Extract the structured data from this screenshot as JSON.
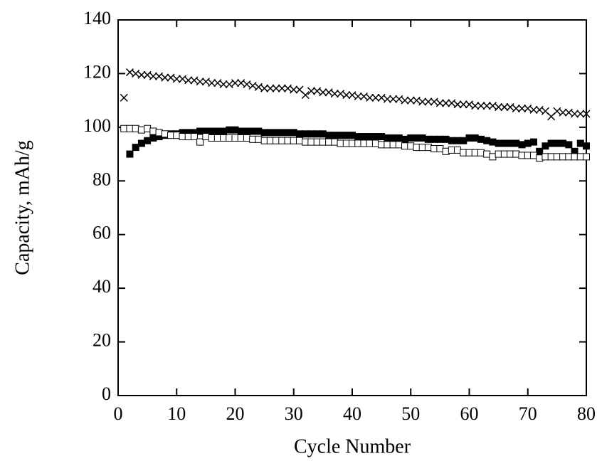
{
  "chart_data": {
    "type": "scatter",
    "xlabel": "Cycle Number",
    "ylabel": "Capacity, mAh/g",
    "xlim": [
      0,
      80
    ],
    "xticks": [
      0,
      10,
      20,
      30,
      40,
      50,
      60,
      70,
      80
    ],
    "ylim": [
      0,
      140
    ],
    "yticks": [
      0,
      20,
      40,
      60,
      80,
      100,
      120,
      140
    ],
    "grid": false,
    "x": [
      1,
      2,
      3,
      4,
      5,
      6,
      7,
      8,
      9,
      10,
      11,
      12,
      13,
      14,
      15,
      16,
      17,
      18,
      19,
      20,
      21,
      22,
      23,
      24,
      25,
      26,
      27,
      28,
      29,
      30,
      31,
      32,
      33,
      34,
      35,
      36,
      37,
      38,
      39,
      40,
      41,
      42,
      43,
      44,
      45,
      46,
      47,
      48,
      49,
      50,
      51,
      52,
      53,
      54,
      55,
      56,
      57,
      58,
      59,
      60,
      61,
      62,
      63,
      64,
      65,
      66,
      67,
      68,
      69,
      70,
      71,
      72,
      73,
      74,
      75,
      76,
      77,
      78,
      79,
      80
    ],
    "series": [
      {
        "marker": "x",
        "color": "#000000",
        "values": [
          111,
          120.5,
          120,
          119.5,
          119.5,
          119,
          119,
          118.5,
          118.5,
          118,
          118,
          117.5,
          117.5,
          117,
          117,
          116.5,
          116.5,
          116,
          116,
          116.5,
          116.5,
          116,
          115.5,
          115,
          114.5,
          114.5,
          114.5,
          114.5,
          114.5,
          114,
          114,
          112,
          113.5,
          113.5,
          113,
          113,
          112.5,
          112.5,
          112,
          112,
          111.5,
          111.5,
          111,
          111,
          111,
          110.5,
          110.5,
          110.5,
          110,
          110,
          110,
          109.5,
          109.5,
          109.5,
          109,
          109,
          109,
          108.5,
          108.5,
          108.5,
          108,
          108,
          108,
          108,
          107.5,
          107.5,
          107.5,
          107,
          107,
          107,
          106.5,
          106.5,
          106,
          104,
          106,
          105.5,
          105.5,
          105,
          105,
          105
        ]
      },
      {
        "marker": "square-filled",
        "color": "#000000",
        "values": [
          null,
          90,
          92.5,
          94,
          95,
          96,
          96.5,
          97,
          97.5,
          97.5,
          98,
          98,
          98,
          98.5,
          98.5,
          98.5,
          98.5,
          98.5,
          99,
          99,
          98.5,
          98.5,
          98.5,
          98.5,
          98,
          98,
          98,
          98,
          98,
          98,
          97.5,
          97.5,
          97.5,
          97.5,
          97.5,
          97,
          97,
          97,
          97,
          97,
          96.5,
          96.5,
          96.5,
          96.5,
          96.5,
          96,
          96,
          96,
          95.5,
          96,
          96,
          96,
          95.5,
          95.5,
          95.5,
          95.5,
          95,
          95,
          95,
          96,
          96,
          95.5,
          95,
          94.5,
          94,
          94,
          94,
          94,
          93.5,
          94,
          94.5,
          91,
          93,
          94,
          94,
          94,
          93.5,
          91,
          94,
          93
        ]
      },
      {
        "marker": "square-open",
        "color": "#000000",
        "values": [
          99.5,
          99.5,
          99.5,
          99,
          99.5,
          98.5,
          98,
          97.5,
          97,
          97,
          96.5,
          96.5,
          96.5,
          94.5,
          96.5,
          96,
          96,
          96,
          96,
          96,
          96,
          96,
          95.5,
          95.5,
          95,
          95,
          95,
          95,
          95,
          95,
          95,
          94.5,
          94.5,
          94.5,
          94.5,
          94.5,
          94.5,
          94,
          94,
          94,
          94,
          94,
          94,
          94,
          93.5,
          93.5,
          93.5,
          93.5,
          93,
          93,
          92.5,
          92.5,
          92.5,
          92,
          92,
          91,
          91.5,
          91.5,
          90.5,
          90.5,
          90.5,
          90.5,
          90,
          89,
          90,
          90,
          90,
          90,
          89.5,
          89.5,
          89.5,
          88.5,
          89,
          89,
          89,
          89,
          89,
          89,
          89,
          89
        ]
      }
    ]
  }
}
